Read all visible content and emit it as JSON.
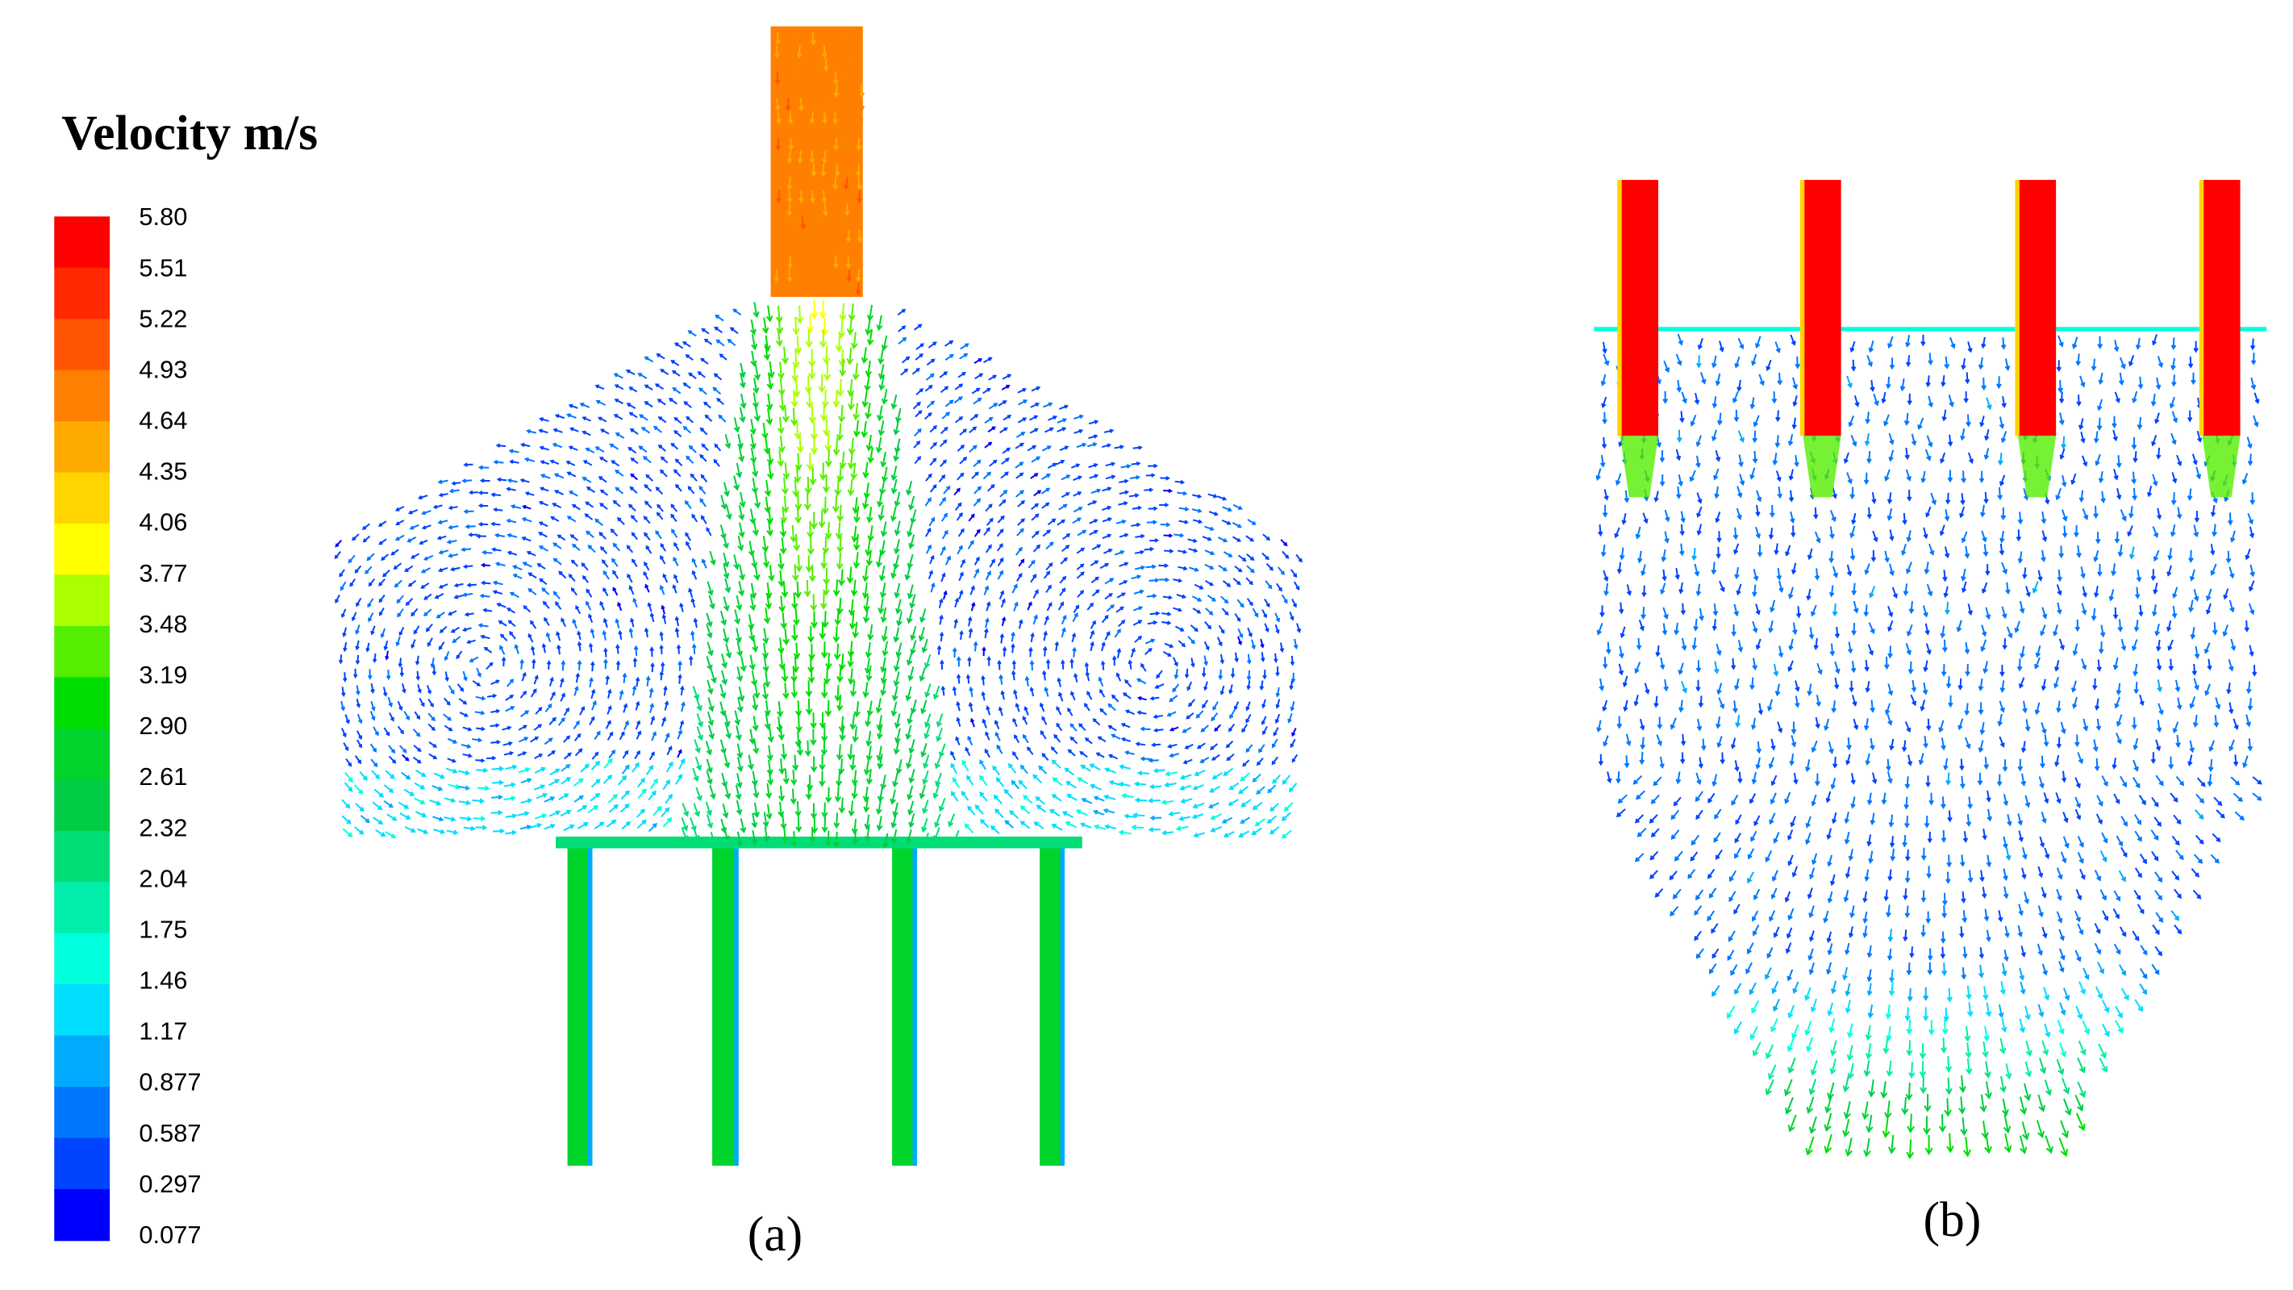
{
  "legend": {
    "title": "Velocity  m/s",
    "labels": [
      "5.80",
      "5.51",
      "5.22",
      "4.93",
      "4.64",
      "4.35",
      "4.06",
      "3.77",
      "3.48",
      "3.19",
      "2.90",
      "2.61",
      "2.32",
      "2.04",
      "1.75",
      "1.46",
      "1.17",
      "0.877",
      "0.587",
      "0.297",
      "0.077"
    ],
    "colors": [
      "#ff0000",
      "#ff2a00",
      "#ff5500",
      "#ff7f00",
      "#ffaa00",
      "#ffd400",
      "#ffff00",
      "#aaff00",
      "#55ee00",
      "#00dd00",
      "#00d42a",
      "#00cc44",
      "#00dd77",
      "#00eeaa",
      "#00ffdd",
      "#00ddff",
      "#00aaff",
      "#0077ff",
      "#0044ff",
      "#0000ff"
    ]
  },
  "panels": [
    {
      "label": "(a)"
    },
    {
      "label": "(b)"
    }
  ]
}
